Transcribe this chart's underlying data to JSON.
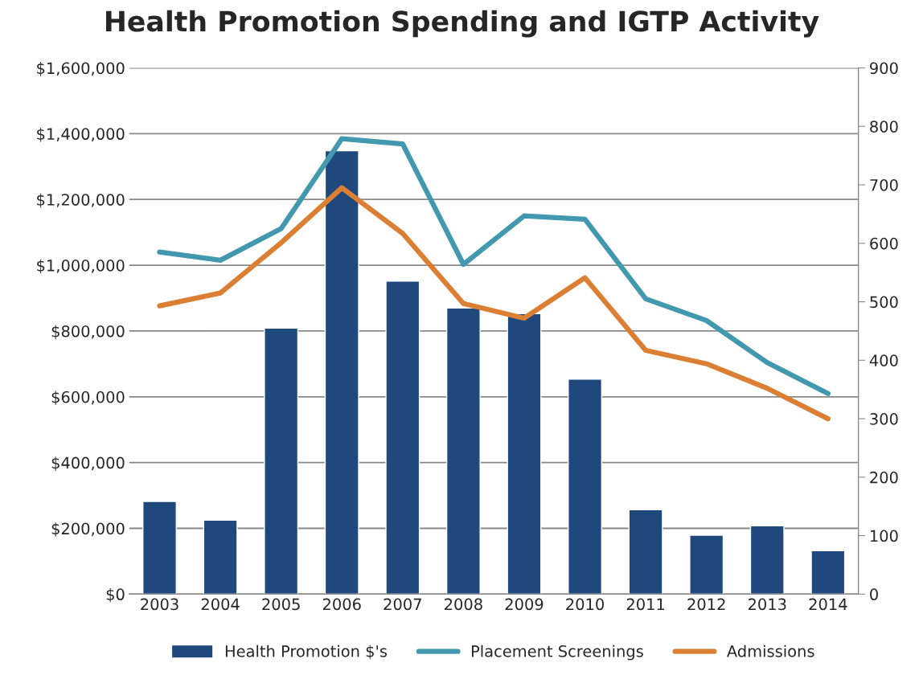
{
  "chart_data": {
    "type": "bar",
    "title": "Health Promotion Spending and IGTP Activity",
    "categories": [
      "2003",
      "2004",
      "2005",
      "2006",
      "2007",
      "2008",
      "2009",
      "2010",
      "2011",
      "2012",
      "2013",
      "2014"
    ],
    "series": [
      {
        "name": "Health Promotion $'s",
        "color": "#1f497d",
        "values": [
          282000,
          225000,
          809000,
          1348000,
          952000,
          870000,
          853000,
          654000,
          257000,
          179000,
          208000,
          132000
        ]
      },
      {
        "name": "Placement Screenings",
        "color": "#4198af",
        "type": "line",
        "axis": "y2",
        "values": [
          585,
          571,
          625,
          779,
          770,
          564,
          647,
          641,
          505,
          468,
          396,
          343
        ]
      },
      {
        "name": "Admissions",
        "color": "#db7f34",
        "type": "line",
        "axis": "y2",
        "values": [
          493,
          515,
          601,
          695,
          617,
          497,
          472,
          541,
          417,
          394,
          352,
          300
        ]
      }
    ],
    "ylim": [
      0,
      1600000
    ],
    "yticks": [
      {
        "value": 0,
        "label": "$0"
      },
      {
        "value": 200000,
        "label": "$200,000"
      },
      {
        "value": 400000,
        "label": "$400,000"
      },
      {
        "value": 600000,
        "label": "$600,000"
      },
      {
        "value": 800000,
        "label": "$800,000"
      },
      {
        "value": 1000000,
        "label": "$1,000,000"
      },
      {
        "value": 1200000,
        "label": "$1,200,000"
      },
      {
        "value": 1400000,
        "label": "$1,400,000"
      },
      {
        "value": 1600000,
        "label": "$1,600,000"
      }
    ],
    "y2lim": [
      0,
      900
    ],
    "y2ticks": [
      0,
      100,
      200,
      300,
      400,
      500,
      600,
      700,
      800,
      900
    ],
    "grid": "y",
    "legend": "bottom"
  }
}
